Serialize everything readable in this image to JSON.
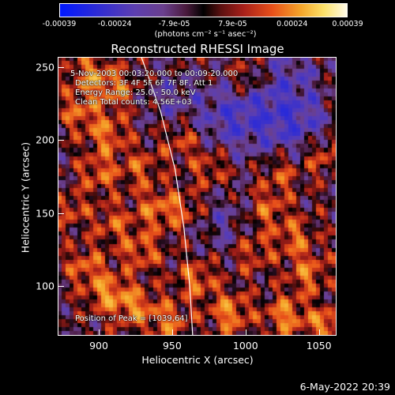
{
  "colorbar": {
    "ticks": [
      "-0.00039",
      "-0.00024",
      "-7.9e-05",
      "7.9e-05",
      "0.00024",
      "0.00039"
    ],
    "tick_values": [
      -0.00039,
      -0.00024,
      -7.9e-05,
      7.9e-05,
      0.00024,
      0.00039
    ],
    "unit_label": "(photons cm⁻² s⁻¹ asec⁻²)"
  },
  "chart_data": {
    "type": "heatmap",
    "title": "Reconstructed RHESSI Image",
    "xlabel": "Heliocentric X (arcsec)",
    "ylabel": "Heliocentric Y (arcsec)",
    "xlim": [
      872,
      1062
    ],
    "ylim": [
      66,
      257
    ],
    "xticks": [
      900,
      950,
      1000,
      1050
    ],
    "yticks": [
      100,
      150,
      200,
      250
    ],
    "limb_curve": {
      "points": [
        [
          929,
          257
        ],
        [
          942,
          220
        ],
        [
          952,
          180
        ],
        [
          958,
          140
        ],
        [
          962,
          100
        ],
        [
          964,
          66
        ]
      ]
    },
    "annotations": {
      "time_range": "5-Nov-2003 00:03:20.000 to 00:09:20.000",
      "detectors": "Detectors: 3F 4F 5F 6F 7F 8F, Att 1",
      "energy": "Energy Range: 25.0 - 50.0 keV",
      "method": "Clean    Total counts: 4.56E+03",
      "peak": "Position of Peak = [1039,64]"
    }
  },
  "timestamp": "6-May-2022 20:39"
}
